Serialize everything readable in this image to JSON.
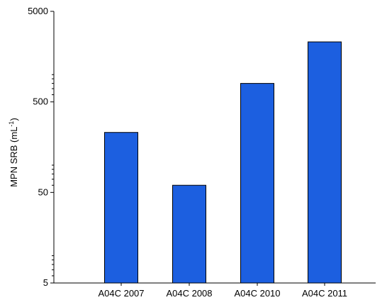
{
  "chart_data": {
    "type": "bar",
    "scale": "log",
    "categories": [
      "A04C 2007",
      "A04C 2008",
      "A04C 2010",
      "A04C 2011"
    ],
    "values": [
      230,
      60,
      800,
      2300
    ],
    "ylabel_main": "MPN SRB (mL",
    "ylabel_sup": "-1",
    "ylabel_close": ")",
    "ylim": [
      5,
      5000
    ],
    "yticks": [
      5,
      50,
      500,
      5000
    ],
    "ytick_labels": [
      "5",
      "50",
      "500",
      "5000"
    ],
    "grid": false,
    "legend": "none",
    "bar_color": "#1c5fe0",
    "bar_stroke": "#000000"
  }
}
